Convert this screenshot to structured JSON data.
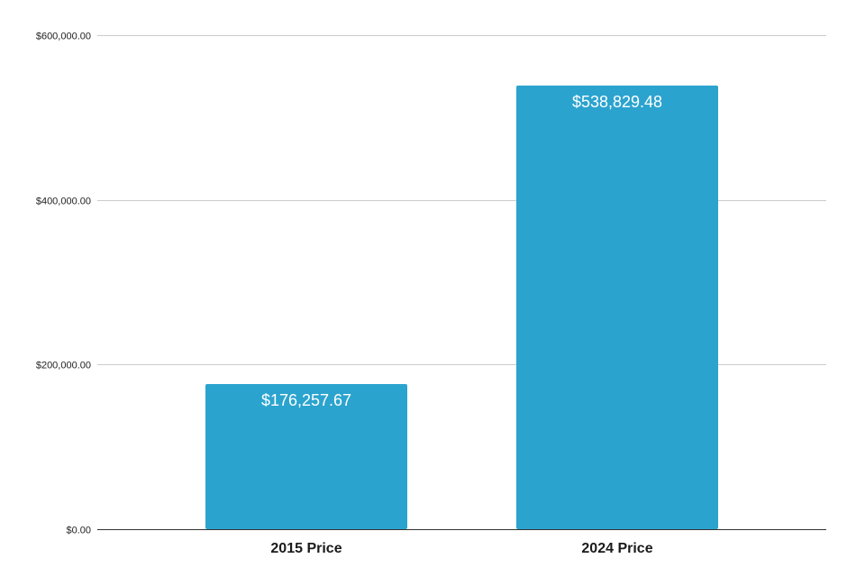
{
  "chart_data": {
    "type": "bar",
    "title": "",
    "xlabel": "",
    "ylabel": "",
    "categories": [
      "2015 Price",
      "2024 Price"
    ],
    "values": [
      176257.67,
      538829.48
    ],
    "data_labels": [
      "$176,257.67",
      "$538,829.48"
    ],
    "ylim": [
      0,
      600000
    ],
    "yticks": [
      0,
      200000,
      400000,
      600000
    ],
    "ytick_labels": [
      "$0.00",
      "$200,000.00",
      "$400,000.00",
      "$600,000.00"
    ],
    "grid": true,
    "legend": "none",
    "bar_color": "#2ba3cf"
  }
}
